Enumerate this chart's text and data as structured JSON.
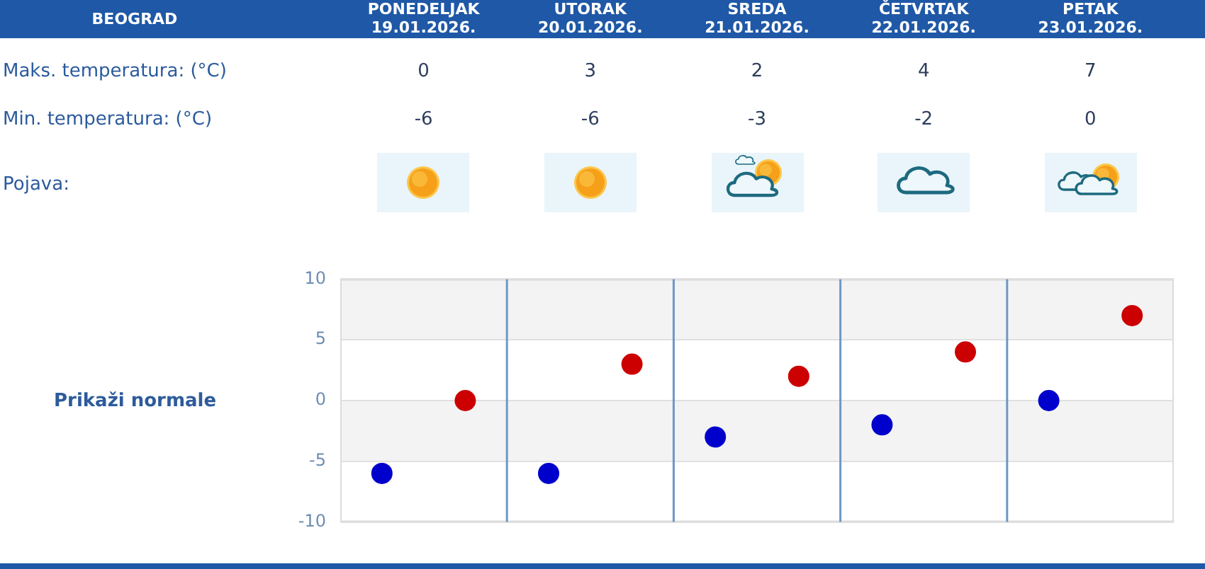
{
  "chart_data": {
    "type": "scatter",
    "title": "BEOGRAD",
    "categories": [
      null,
      null,
      null,
      null,
      null
    ],
    "series": [
      {
        "color": "#cc0000",
        "values": [
          0,
          3,
          2,
          4,
          7
        ]
      },
      {
        "color": "#0000cc",
        "values": [
          -6,
          -6,
          -3,
          -2,
          0
        ]
      }
    ],
    "ylim": [
      -10,
      10
    ],
    "yticks": [
      -10,
      -5,
      0,
      5,
      10
    ],
    "grid": true,
    "marker": "circle",
    "data_labels": true,
    "bands": [
      {
        "axis": "y",
        "from": 5,
        "to": 10,
        "color": "#f3f3f3"
      },
      {
        "axis": "y",
        "from": -5,
        "to": 0,
        "color": "#f3f3f3"
      }
    ],
    "annotations": [
      "PONEDELJAK 19.01.2026.",
      "UTORAK 20.01.2026.",
      "SREDA 21.01.2026.",
      "ČETVRTAK 22.01.2026.",
      "PETAK 23.01.2026.",
      "Maks. temperatura: (°C)",
      "Min. temperatura: (°C)",
      "Pojava:",
      "Prikaži normale"
    ]
  }
}
